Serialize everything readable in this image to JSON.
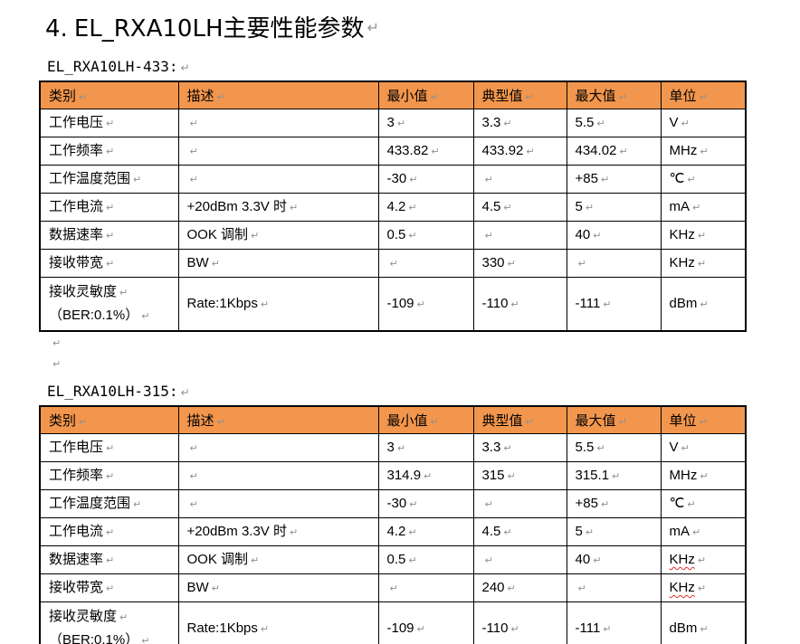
{
  "page": {
    "title_number": "4.",
    "title_text": "EL_RXA10LH主要性能参数",
    "eol_mark": "↵"
  },
  "colors": {
    "header_bg": "#F2964D",
    "border": "#000000",
    "mark": "#909090",
    "squiggle": "#E0312E"
  },
  "tables": [
    {
      "caption": "EL_RXA10LH-433:",
      "headers": [
        "类别",
        "描述",
        "最小值",
        "典型值",
        "最大值",
        "单位"
      ],
      "rows": [
        [
          "工作电压",
          "",
          "3",
          "3.3",
          "5.5",
          "V"
        ],
        [
          "工作频率",
          "",
          "433.82",
          "433.92",
          "434.02",
          "MHz"
        ],
        [
          "工作温度范围",
          "",
          "-30",
          "",
          "+85",
          "℃"
        ],
        [
          "工作电流",
          "+20dBm 3.3V 时",
          "4.2",
          "4.5",
          "5",
          "mA"
        ],
        [
          "数据速率",
          "OOK 调制",
          "0.5",
          "",
          "40",
          "KHz"
        ],
        [
          "接收带宽",
          "BW",
          "",
          "330",
          "",
          "KHz"
        ],
        [
          "接收灵敏度\n（BER:0.1%）",
          "Rate:1Kbps",
          "-109",
          "-110",
          "-111",
          "dBm"
        ]
      ],
      "misspelled": []
    },
    {
      "caption": "EL_RXA10LH-315:",
      "headers": [
        "类别",
        "描述",
        "最小值",
        "典型值",
        "最大值",
        "单位"
      ],
      "rows": [
        [
          "工作电压",
          "",
          "3",
          "3.3",
          "5.5",
          "V"
        ],
        [
          "工作频率",
          "",
          "314.9",
          "315",
          "315.1",
          "MHz"
        ],
        [
          "工作温度范围",
          "",
          "-30",
          "",
          "+85",
          "℃"
        ],
        [
          "工作电流",
          "+20dBm 3.3V 时",
          "4.2",
          "4.5",
          "5",
          "mA"
        ],
        [
          "数据速率",
          "OOK 调制",
          "0.5",
          "",
          "40",
          "KHz"
        ],
        [
          "接收带宽",
          "BW",
          "",
          "240",
          "",
          "KHz"
        ],
        [
          "接收灵敏度\n（BER:0.1%）",
          "Rate:1Kbps",
          "-109",
          "-110",
          "-111",
          "dBm"
        ]
      ],
      "misspelled": [
        [
          4,
          5
        ],
        [
          5,
          5
        ]
      ]
    }
  ],
  "blank_paragraph_count": 2
}
